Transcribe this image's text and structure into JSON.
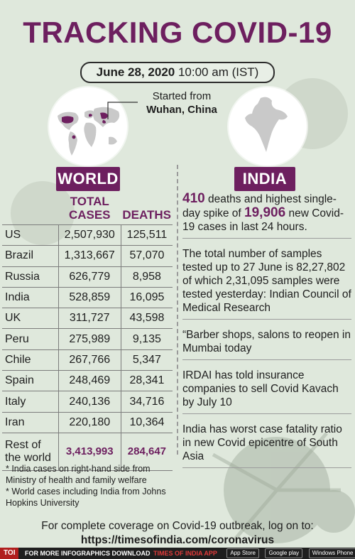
{
  "title": "TRACKING COVID-19",
  "date": {
    "bold": "June 28, 2020",
    "rest": "10:00 am (IST)"
  },
  "origin_note": {
    "line1": "Started from",
    "line2": "Wuhan, China"
  },
  "colors": {
    "accent": "#6d1f5f",
    "background": "#dfe8dc",
    "map_land": "#c9c9c9",
    "map_highlight": "#6d1f5f"
  },
  "world": {
    "label": "WORLD",
    "headers": {
      "cases": "TOTAL CASES",
      "deaths": "DEATHS"
    },
    "rows": [
      {
        "country": "US",
        "cases": "2,507,930",
        "deaths": "125,511"
      },
      {
        "country": "Brazil",
        "cases": "1,313,667",
        "deaths": "57,070"
      },
      {
        "country": "Russia",
        "cases": "626,779",
        "deaths": "8,958"
      },
      {
        "country": "India",
        "cases": "528,859",
        "deaths": "16,095"
      },
      {
        "country": "UK",
        "cases": "311,727",
        "deaths": "43,598"
      },
      {
        "country": "Peru",
        "cases": "275,989",
        "deaths": "9,135"
      },
      {
        "country": "Chile",
        "cases": "267,766",
        "deaths": "5,347"
      },
      {
        "country": "Spain",
        "cases": "248,469",
        "deaths": "28,341"
      },
      {
        "country": "Italy",
        "cases": "240,136",
        "deaths": "34,716"
      },
      {
        "country": "Iran",
        "cases": "220,180",
        "deaths": "10,364"
      }
    ],
    "rest": {
      "line1": "Rest of",
      "line2": "the world",
      "cases": "3,413,993",
      "deaths": "284,647"
    }
  },
  "india": {
    "label": "INDIA",
    "item1": {
      "hl1": "410",
      "t1": " deaths and highest single-day spike of ",
      "hl2": "19,906",
      "t2": " new Covid-19 cases in last 24 hours."
    },
    "item2": "The total number of samples tested up to 27 June is 82,27,802 of which 2,31,095 samples were tested yesterday: Indian Council of Medical Research",
    "item3": "“Barber shops, salons to reopen in Mumbai today",
    "item4": "IRDAI has told insurance companies to sell Covid Kavach by July 10",
    "item5": "India has worst case fatality ratio in new Covid epicentre of South Asia"
  },
  "footnotes": {
    "n1": "* India cases on right-hand side from Ministry of health and family welfare",
    "n2": "* World cases including India from Johns Hopkins University"
  },
  "footer": {
    "text": "For complete coverage on Covid-19 outbreak, log on to:",
    "url": "https://timesofindia.com/coronavirus"
  },
  "bottom_bar": {
    "logo": "TOI",
    "promo": "FOR MORE  INFOGRAPHICS DOWNLOAD",
    "app": "TIMES OF INDIA  APP",
    "store1": "App Store",
    "store2": "Google play",
    "store3": "Windows Phone"
  },
  "icons": [
    "world-map-icon",
    "india-map-icon",
    "coronavirus-illustration"
  ]
}
